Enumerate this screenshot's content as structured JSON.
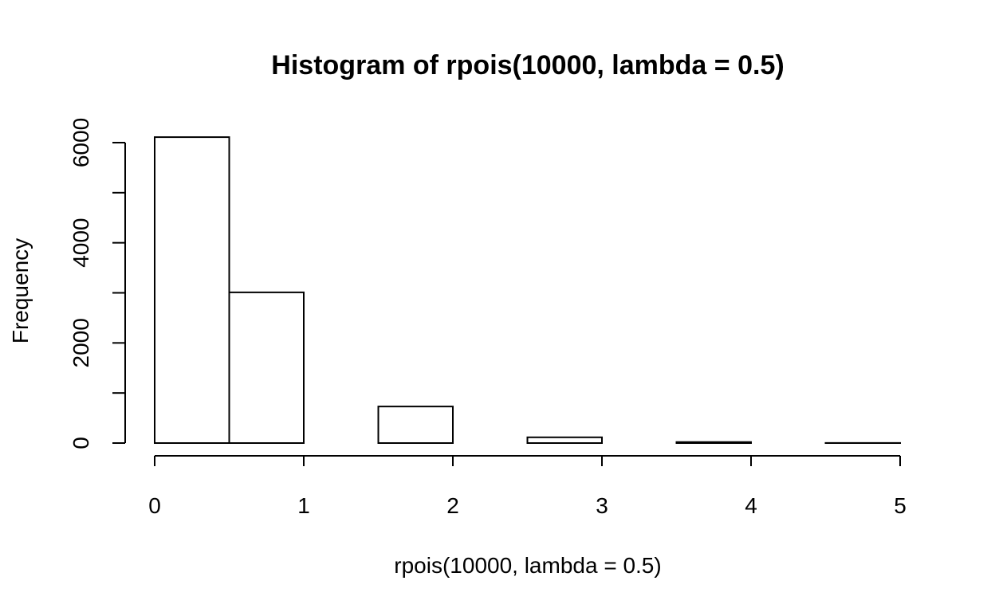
{
  "chart_data": {
    "type": "bar",
    "title": "Histogram of rpois(10000, lambda = 0.5)",
    "xlabel": "rpois(10000, lambda = 0.5)",
    "ylabel": "Frequency",
    "xlim": [
      0,
      5
    ],
    "ylim": [
      0,
      6000
    ],
    "x_ticks": [
      "0",
      "1",
      "2",
      "3",
      "4",
      "5"
    ],
    "y_ticks": [
      "0",
      "2000",
      "4000",
      "6000"
    ],
    "y_minor_ticks": [
      1000,
      3000,
      5000
    ],
    "bins": [
      {
        "start": 0.0,
        "end": 0.5,
        "count": 6110
      },
      {
        "start": 0.5,
        "end": 1.0,
        "count": 3010
      },
      {
        "start": 1.0,
        "end": 1.5,
        "count": 0
      },
      {
        "start": 1.5,
        "end": 2.0,
        "count": 730
      },
      {
        "start": 2.0,
        "end": 2.5,
        "count": 0
      },
      {
        "start": 2.5,
        "end": 3.0,
        "count": 115
      },
      {
        "start": 3.0,
        "end": 3.5,
        "count": 0
      },
      {
        "start": 3.5,
        "end": 4.0,
        "count": 20
      },
      {
        "start": 4.0,
        "end": 4.5,
        "count": 0
      },
      {
        "start": 4.5,
        "end": 5.0,
        "count": 2
      }
    ],
    "bar_fill": "#ffffff",
    "bar_stroke": "#000000",
    "grid": false,
    "legend": "none"
  }
}
